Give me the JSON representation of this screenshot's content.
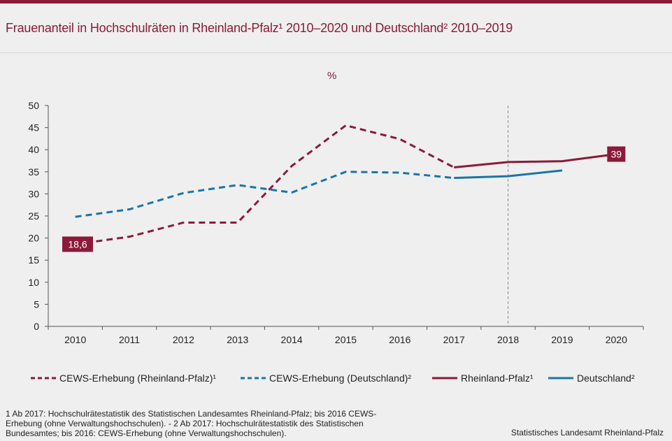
{
  "title": "Frauenanteil in Hochschulräten in Rheinland-Pfalz¹ 2010–2020 und Deutschland² 2010–2019",
  "unit_label": "%",
  "chart_data": {
    "type": "line",
    "categories": [
      "2010",
      "2011",
      "2012",
      "2013",
      "2014",
      "2015",
      "2016",
      "2017",
      "2018",
      "2019",
      "2020"
    ],
    "ylim": [
      0,
      50
    ],
    "yticks": [
      0,
      5,
      10,
      15,
      20,
      25,
      30,
      35,
      40,
      45,
      50
    ],
    "grid": false,
    "reference_line_x": "2018",
    "series": [
      {
        "name": "CEWS-Erhebung (Rheinland-Pfalz)¹",
        "color": "#8b1a3a",
        "dashed": true,
        "values": [
          18.6,
          20.3,
          23.5,
          23.5,
          36.3,
          45.5,
          42.4,
          36.0,
          null,
          null,
          null
        ]
      },
      {
        "name": "CEWS-Erhebung (Deutschland)²",
        "color": "#1b75a6",
        "dashed": true,
        "values": [
          24.8,
          26.5,
          30.2,
          32.0,
          30.3,
          35.0,
          34.8,
          33.6,
          null,
          null,
          null
        ]
      },
      {
        "name": "Rheinland-Pfalz¹",
        "color": "#8b1a3a",
        "dashed": false,
        "values": [
          null,
          null,
          null,
          null,
          null,
          null,
          null,
          36.0,
          37.2,
          37.4,
          39.0
        ]
      },
      {
        "name": "Deutschland²",
        "color": "#1b75a6",
        "dashed": false,
        "values": [
          null,
          null,
          null,
          null,
          null,
          null,
          null,
          33.6,
          34.0,
          35.3,
          null
        ]
      }
    ],
    "data_labels": [
      {
        "text": "18,6",
        "series": 0,
        "index": 0
      },
      {
        "text": "39",
        "series": 2,
        "index": 10
      }
    ]
  },
  "footnote": "1 Ab 2017: Hochschulrätestatistik des Statistischen Landesamtes Rheinland-Pfalz; bis 2016 CEWS-Erhebung (ohne Verwaltungshochschulen). - 2 Ab 2017: Hochschulrätestatistik des Statistischen Bundesamtes; bis 2016: CEWS-Erhebung (ohne Verwaltungshochschulen).",
  "source": "Statistisches Landesamt Rheinland-Pfalz"
}
